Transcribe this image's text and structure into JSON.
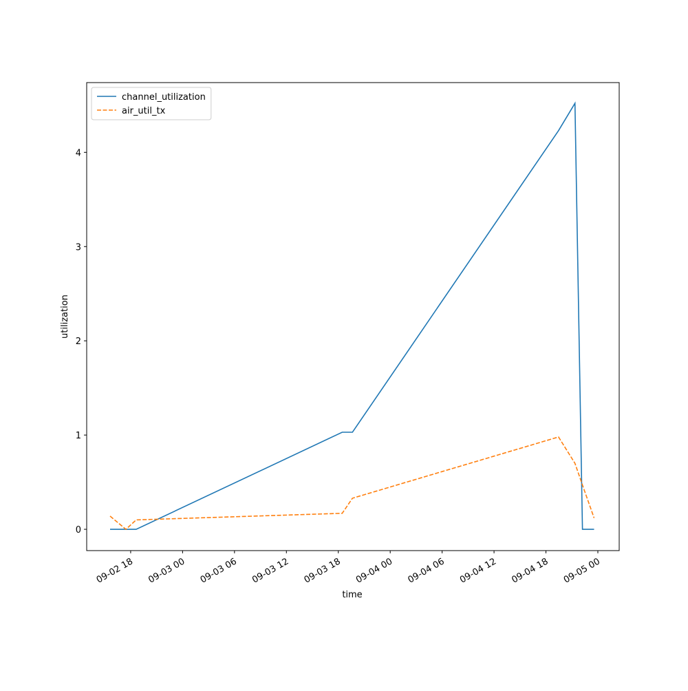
{
  "chart_data": {
    "type": "line",
    "x": [
      "09-02 15:37",
      "09-02 17:27",
      "09-02 18:38",
      "09-03 18:27",
      "09-03 19:38",
      "09-04 19:27",
      "09-04 21:21",
      "09-04 22:13",
      "09-04 23:34"
    ],
    "series": [
      {
        "name": "channel_utilization",
        "color": "#1f77b4",
        "style": "solid",
        "values": [
          0,
          0,
          0,
          1.03,
          1.03,
          4.23,
          4.52,
          0,
          0
        ]
      },
      {
        "name": "air_util_tx",
        "color": "#ff7f0e",
        "style": "dashed",
        "values": [
          0.14,
          0.0,
          0.1,
          0.17,
          0.33,
          0.98,
          0.7,
          0.47,
          0.12
        ]
      }
    ],
    "xlabel": "time",
    "ylabel": "utilization",
    "xlim": [
      "09-02 12:55",
      "09-05 02:28"
    ],
    "xticks": [
      "09-02 18",
      "09-03 00",
      "09-03 06",
      "09-03 12",
      "09-03 18",
      "09-04 00",
      "09-04 06",
      "09-04 12",
      "09-04 18",
      "09-05 00"
    ],
    "ylim": [
      -0.226,
      4.74
    ],
    "yticks": [
      0,
      1,
      2,
      3,
      4
    ],
    "legend": "upper left",
    "grid": false
  }
}
